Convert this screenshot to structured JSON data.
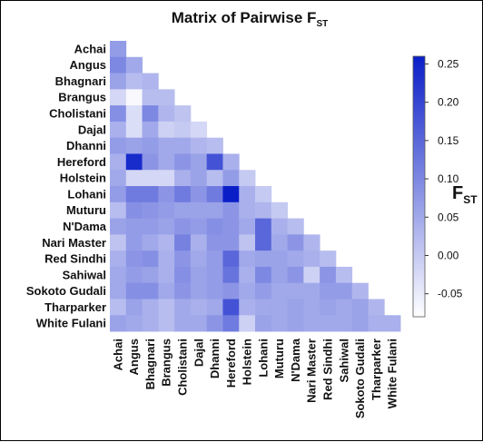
{
  "chart_data": {
    "type": "heatmap",
    "title": "Matrix  of Pairwise F",
    "title_subscript": "ST",
    "colorbar_label": "F",
    "colorbar_label_subscript": "ST",
    "colorbar_ticks": [
      "0.25",
      "0.20",
      "0.15",
      "0.10",
      "0.05",
      "0.00",
      "-0.05"
    ],
    "colorbar_tick_values": [
      0.25,
      0.2,
      0.15,
      0.1,
      0.05,
      0.0,
      -0.05
    ],
    "vmin": -0.08,
    "vmax": 0.26,
    "colormap": [
      "#ffffff",
      "#0a1ec8"
    ],
    "categories": [
      "Achai",
      "Angus",
      "Bhagnari",
      "Brangus",
      "Cholistani",
      "Dajal",
      "Dhanni",
      "Hereford",
      "Holstein",
      "Lohani",
      "Muturu",
      "N'Dama",
      "Nari Master",
      "Red Sindhi",
      "Sahiwal",
      "Sokoto Gudali",
      "Tharparker",
      "White Fulani"
    ],
    "layout": "lower-triangle",
    "values": [
      [
        0.07
      ],
      [
        0.1,
        0.05
      ],
      [
        0.06,
        0.02,
        0.03
      ],
      [
        -0.02,
        -0.07,
        0.02,
        0.02
      ],
      [
        0.09,
        -0.03,
        0.1,
        0.03,
        0.01
      ],
      [
        0.04,
        -0.03,
        0.05,
        -0.01,
        0.0,
        -0.02
      ],
      [
        0.07,
        0.06,
        0.07,
        0.05,
        0.05,
        0.03,
        0.02
      ],
      [
        0.04,
        0.24,
        0.08,
        0.05,
        0.08,
        0.06,
        0.18,
        0.04
      ],
      [
        0.05,
        -0.02,
        -0.02,
        -0.02,
        0.04,
        0.06,
        0.02,
        0.07,
        0.0
      ],
      [
        0.07,
        0.12,
        0.12,
        0.08,
        0.12,
        0.08,
        0.12,
        0.26,
        0.04,
        0.0
      ],
      [
        0.02,
        0.09,
        0.08,
        0.07,
        0.06,
        0.06,
        0.06,
        0.08,
        0.04,
        0.03,
        0.0
      ],
      [
        0.06,
        0.07,
        0.07,
        0.06,
        0.08,
        0.07,
        0.09,
        0.08,
        0.05,
        0.15,
        0.04,
        0.02
      ],
      [
        0.01,
        0.07,
        0.05,
        0.03,
        0.11,
        0.04,
        0.08,
        0.08,
        0.01,
        0.15,
        0.05,
        0.08,
        0.03
      ],
      [
        0.04,
        0.08,
        0.09,
        0.04,
        0.08,
        0.05,
        0.07,
        0.15,
        0.05,
        0.06,
        0.06,
        0.05,
        0.04,
        0.02
      ],
      [
        0.05,
        0.07,
        0.06,
        0.04,
        0.09,
        0.06,
        0.07,
        0.13,
        0.04,
        0.1,
        0.06,
        0.08,
        -0.01,
        0.08,
        0.02
      ],
      [
        0.05,
        0.09,
        0.09,
        0.05,
        0.08,
        0.06,
        0.07,
        0.08,
        0.05,
        0.07,
        0.05,
        0.05,
        0.05,
        0.07,
        0.07,
        0.03
      ],
      [
        0.02,
        0.06,
        0.04,
        0.02,
        0.05,
        0.04,
        0.05,
        0.18,
        0.04,
        0.05,
        0.05,
        0.06,
        0.05,
        0.06,
        0.05,
        0.06,
        0.03
      ],
      [
        0.06,
        0.05,
        0.04,
        0.02,
        0.05,
        0.05,
        0.08,
        0.12,
        -0.01,
        0.06,
        0.05,
        0.06,
        0.05,
        0.05,
        0.05,
        0.06,
        0.04,
        0.04
      ]
    ]
  }
}
